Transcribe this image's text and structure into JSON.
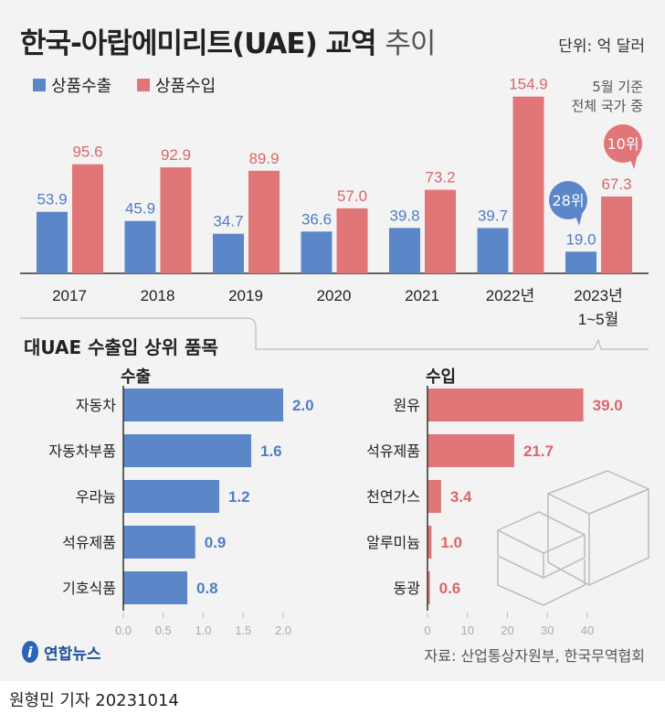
{
  "title": {
    "main": "한국-아랍에미리트(UAE) 교역",
    "light": "추이"
  },
  "unit": "단위: 억 달러",
  "note": [
    "5월 기준",
    "전체 국가 중"
  ],
  "colors": {
    "export": "#5b86c8",
    "import": "#e07677",
    "export_label": "#4f7dc4",
    "import_label": "#d9676b"
  },
  "chart_data": [
    {
      "type": "bar",
      "categories": [
        "2017",
        "2018",
        "2019",
        "2020",
        "2021",
        "2022년",
        "2023년 1~5월"
      ],
      "series": [
        {
          "name": "상품수출",
          "values": [
            53.9,
            45.9,
            34.7,
            36.6,
            39.8,
            39.7,
            19.0
          ]
        },
        {
          "name": "상품수입",
          "values": [
            95.6,
            92.9,
            89.9,
            57.0,
            73.2,
            154.9,
            67.3
          ]
        }
      ],
      "legend_placement": "top-left",
      "annotations": [
        {
          "category": "2023년 1~5월",
          "series": "상품수출",
          "text": "28위"
        },
        {
          "category": "2023년 1~5월",
          "series": "상품수입",
          "text": "10위"
        }
      ],
      "grid": false
    },
    {
      "type": "bar",
      "orientation": "horizontal",
      "title": "수출",
      "categories": [
        "자동차",
        "자동차부품",
        "우라늄",
        "석유제품",
        "기호식품"
      ],
      "values": [
        2.0,
        1.6,
        1.2,
        0.9,
        0.8
      ],
      "xlim": [
        0,
        2.0
      ],
      "ticks": [
        "0.0",
        "0.5",
        "1.0",
        "1.5",
        "2.0"
      ]
    },
    {
      "type": "bar",
      "orientation": "horizontal",
      "title": "수입",
      "categories": [
        "원유",
        "석유제품",
        "천연가스",
        "알루미늄",
        "동광"
      ],
      "values": [
        39.0,
        21.7,
        3.4,
        1.0,
        0.6
      ],
      "xlim": [
        0,
        40
      ],
      "ticks": [
        "0",
        "10",
        "20",
        "30",
        "40"
      ]
    }
  ],
  "section_title": "대UAE 수출입 상위 품목",
  "source": "자료: 산업통상자원부, 한국무역협회",
  "logo": "연합뉴스",
  "byline": "원형민 기자  20231014"
}
